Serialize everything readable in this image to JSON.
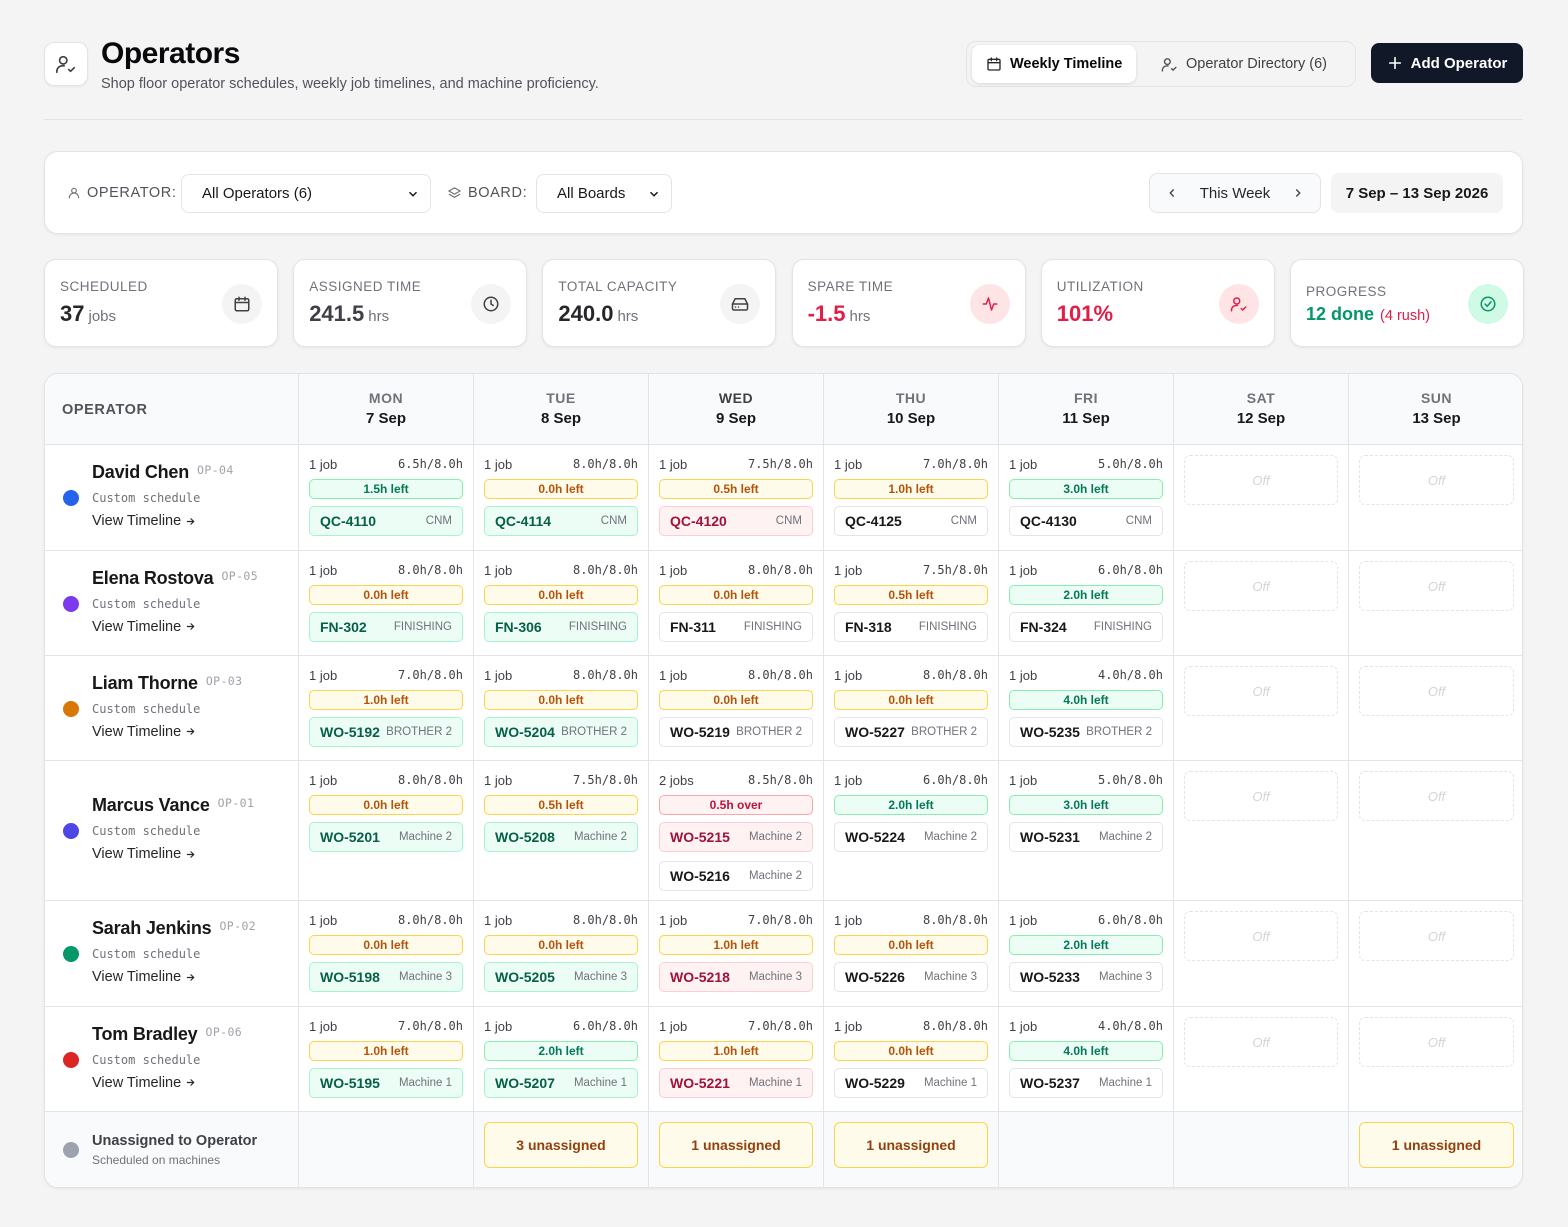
{
  "header": {
    "title": "Operators",
    "subtitle": "Shop floor operator schedules, weekly job timelines, and machine proficiency.",
    "tabs": [
      "Weekly Timeline",
      "Operator Directory (6)"
    ],
    "add_label": "Add Operator"
  },
  "filters": {
    "operator_label": "OPERATOR:",
    "operator_value": "All Operators (6)",
    "board_label": "BOARD:",
    "board_value": "All Boards",
    "week_label": "This Week",
    "range": "7 Sep – 13 Sep 2026"
  },
  "stats": [
    {
      "label": "SCHEDULED",
      "value": "37",
      "unit": "jobs",
      "color": "#27272a",
      "icon": "calendar-icon"
    },
    {
      "label": "ASSIGNED TIME",
      "value": "241.5",
      "unit": "hrs",
      "color": "#3f3f46",
      "icon": "clock-icon"
    },
    {
      "label": "TOTAL CAPACITY",
      "value": "240.0",
      "unit": "hrs",
      "color": "#27272a",
      "icon": "drive-icon"
    },
    {
      "label": "SPARE TIME",
      "value": "-1.5",
      "unit": "hrs",
      "color": "#e11d48",
      "icon": "pulse-icon"
    },
    {
      "label": "UTILIZATION",
      "value": "101%",
      "unit": "",
      "color": "#e11d48",
      "icon": "user-check-icon"
    },
    {
      "label": "PROGRESS",
      "value": "12 done",
      "unit": "(4 rush)",
      "color": "#059669",
      "icon": "check-circle-icon"
    }
  ],
  "grid": {
    "operator_header": "OPERATOR",
    "days": [
      {
        "day": "MON",
        "date": "7 Sep"
      },
      {
        "day": "TUE",
        "date": "8 Sep"
      },
      {
        "day": "WED",
        "date": "9 Sep"
      },
      {
        "day": "THU",
        "date": "10 Sep"
      },
      {
        "day": "FRI",
        "date": "11 Sep"
      },
      {
        "day": "SAT",
        "date": "12 Sep"
      },
      {
        "day": "SUN",
        "date": "13 Sep"
      }
    ],
    "off_label": "Off",
    "view_timeline": "View Timeline",
    "operators": [
      {
        "name": "David Chen",
        "code": "OP-04",
        "schedule": "Custom schedule",
        "color": "#2563eb",
        "cells": [
          {
            "count": "1 job",
            "hours": "6.5h/8.0h",
            "pill": "1.5h left",
            "pill_tone": "green",
            "jobs": [
              {
                "id": "QC-4110",
                "machine": "CNM",
                "tone": "green"
              }
            ]
          },
          {
            "count": "1 job",
            "hours": "8.0h/8.0h",
            "pill": "0.0h left",
            "pill_tone": "amber",
            "jobs": [
              {
                "id": "QC-4114",
                "machine": "CNM",
                "tone": "green"
              }
            ]
          },
          {
            "count": "1 job",
            "hours": "7.5h/8.0h",
            "pill": "0.5h left",
            "pill_tone": "amber",
            "jobs": [
              {
                "id": "QC-4120",
                "machine": "CNM",
                "tone": "red"
              }
            ]
          },
          {
            "count": "1 job",
            "hours": "7.0h/8.0h",
            "pill": "1.0h left",
            "pill_tone": "amber",
            "jobs": [
              {
                "id": "QC-4125",
                "machine": "CNM",
                "tone": "white"
              }
            ]
          },
          {
            "count": "1 job",
            "hours": "5.0h/8.0h",
            "pill": "3.0h left",
            "pill_tone": "green",
            "jobs": [
              {
                "id": "QC-4130",
                "machine": "CNM",
                "tone": "white"
              }
            ]
          }
        ]
      },
      {
        "name": "Elena Rostova",
        "code": "OP-05",
        "schedule": "Custom schedule",
        "color": "#7c3aed",
        "cells": [
          {
            "count": "1 job",
            "hours": "8.0h/8.0h",
            "pill": "0.0h left",
            "pill_tone": "amber",
            "jobs": [
              {
                "id": "FN-302",
                "machine": "FINISHING",
                "tone": "green"
              }
            ]
          },
          {
            "count": "1 job",
            "hours": "8.0h/8.0h",
            "pill": "0.0h left",
            "pill_tone": "amber",
            "jobs": [
              {
                "id": "FN-306",
                "machine": "FINISHING",
                "tone": "green"
              }
            ]
          },
          {
            "count": "1 job",
            "hours": "8.0h/8.0h",
            "pill": "0.0h left",
            "pill_tone": "amber",
            "jobs": [
              {
                "id": "FN-311",
                "machine": "FINISHING",
                "tone": "white"
              }
            ]
          },
          {
            "count": "1 job",
            "hours": "7.5h/8.0h",
            "pill": "0.5h left",
            "pill_tone": "amber",
            "jobs": [
              {
                "id": "FN-318",
                "machine": "FINISHING",
                "tone": "white"
              }
            ]
          },
          {
            "count": "1 job",
            "hours": "6.0h/8.0h",
            "pill": "2.0h left",
            "pill_tone": "green",
            "jobs": [
              {
                "id": "FN-324",
                "machine": "FINISHING",
                "tone": "white"
              }
            ]
          }
        ]
      },
      {
        "name": "Liam Thorne",
        "code": "OP-03",
        "schedule": "Custom schedule",
        "color": "#d97706",
        "cells": [
          {
            "count": "1 job",
            "hours": "7.0h/8.0h",
            "pill": "1.0h left",
            "pill_tone": "amber",
            "jobs": [
              {
                "id": "WO-5192",
                "machine": "BROTHER 2",
                "tone": "green"
              }
            ]
          },
          {
            "count": "1 job",
            "hours": "8.0h/8.0h",
            "pill": "0.0h left",
            "pill_tone": "amber",
            "jobs": [
              {
                "id": "WO-5204",
                "machine": "BROTHER 2",
                "tone": "green"
              }
            ]
          },
          {
            "count": "1 job",
            "hours": "8.0h/8.0h",
            "pill": "0.0h left",
            "pill_tone": "amber",
            "jobs": [
              {
                "id": "WO-5219",
                "machine": "BROTHER 2",
                "tone": "white"
              }
            ]
          },
          {
            "count": "1 job",
            "hours": "8.0h/8.0h",
            "pill": "0.0h left",
            "pill_tone": "amber",
            "jobs": [
              {
                "id": "WO-5227",
                "machine": "BROTHER 2",
                "tone": "white"
              }
            ]
          },
          {
            "count": "1 job",
            "hours": "4.0h/8.0h",
            "pill": "4.0h left",
            "pill_tone": "green",
            "jobs": [
              {
                "id": "WO-5235",
                "machine": "BROTHER 2",
                "tone": "white"
              }
            ]
          }
        ]
      },
      {
        "name": "Marcus Vance",
        "code": "OP-01",
        "schedule": "Custom schedule",
        "color": "#4f46e5",
        "cells": [
          {
            "count": "1 job",
            "hours": "8.0h/8.0h",
            "pill": "0.0h left",
            "pill_tone": "amber",
            "jobs": [
              {
                "id": "WO-5201",
                "machine": "Machine 2",
                "tone": "green"
              }
            ]
          },
          {
            "count": "1 job",
            "hours": "7.5h/8.0h",
            "pill": "0.5h left",
            "pill_tone": "amber",
            "jobs": [
              {
                "id": "WO-5208",
                "machine": "Machine 2",
                "tone": "green"
              }
            ]
          },
          {
            "count": "2 jobs",
            "hours": "8.5h/8.0h",
            "pill": "0.5h over",
            "pill_tone": "red",
            "jobs": [
              {
                "id": "WO-5215",
                "machine": "Machine 2",
                "tone": "red"
              },
              {
                "id": "WO-5216",
                "machine": "Machine 2",
                "tone": "white"
              }
            ]
          },
          {
            "count": "1 job",
            "hours": "6.0h/8.0h",
            "pill": "2.0h left",
            "pill_tone": "green",
            "jobs": [
              {
                "id": "WO-5224",
                "machine": "Machine 2",
                "tone": "white"
              }
            ]
          },
          {
            "count": "1 job",
            "hours": "5.0h/8.0h",
            "pill": "3.0h left",
            "pill_tone": "green",
            "jobs": [
              {
                "id": "WO-5231",
                "machine": "Machine 2",
                "tone": "white"
              }
            ]
          }
        ]
      },
      {
        "name": "Sarah Jenkins",
        "code": "OP-02",
        "schedule": "Custom schedule",
        "color": "#059669",
        "cells": [
          {
            "count": "1 job",
            "hours": "8.0h/8.0h",
            "pill": "0.0h left",
            "pill_tone": "amber",
            "jobs": [
              {
                "id": "WO-5198",
                "machine": "Machine 3",
                "tone": "green"
              }
            ]
          },
          {
            "count": "1 job",
            "hours": "8.0h/8.0h",
            "pill": "0.0h left",
            "pill_tone": "amber",
            "jobs": [
              {
                "id": "WO-5205",
                "machine": "Machine 3",
                "tone": "green"
              }
            ]
          },
          {
            "count": "1 job",
            "hours": "7.0h/8.0h",
            "pill": "1.0h left",
            "pill_tone": "amber",
            "jobs": [
              {
                "id": "WO-5218",
                "machine": "Machine 3",
                "tone": "red"
              }
            ]
          },
          {
            "count": "1 job",
            "hours": "8.0h/8.0h",
            "pill": "0.0h left",
            "pill_tone": "amber",
            "jobs": [
              {
                "id": "WO-5226",
                "machine": "Machine 3",
                "tone": "white"
              }
            ]
          },
          {
            "count": "1 job",
            "hours": "6.0h/8.0h",
            "pill": "2.0h left",
            "pill_tone": "green",
            "jobs": [
              {
                "id": "WO-5233",
                "machine": "Machine 3",
                "tone": "white"
              }
            ]
          }
        ]
      },
      {
        "name": "Tom Bradley",
        "code": "OP-06",
        "schedule": "Custom schedule",
        "color": "#dc2626",
        "cells": [
          {
            "count": "1 job",
            "hours": "7.0h/8.0h",
            "pill": "1.0h left",
            "pill_tone": "amber",
            "jobs": [
              {
                "id": "WO-5195",
                "machine": "Machine 1",
                "tone": "green"
              }
            ]
          },
          {
            "count": "1 job",
            "hours": "6.0h/8.0h",
            "pill": "2.0h left",
            "pill_tone": "green",
            "jobs": [
              {
                "id": "WO-5207",
                "machine": "Machine 1",
                "tone": "green"
              }
            ]
          },
          {
            "count": "1 job",
            "hours": "7.0h/8.0h",
            "pill": "1.0h left",
            "pill_tone": "amber",
            "jobs": [
              {
                "id": "WO-5221",
                "machine": "Machine 1",
                "tone": "red"
              }
            ]
          },
          {
            "count": "1 job",
            "hours": "8.0h/8.0h",
            "pill": "0.0h left",
            "pill_tone": "amber",
            "jobs": [
              {
                "id": "WO-5229",
                "machine": "Machine 1",
                "tone": "white"
              }
            ]
          },
          {
            "count": "1 job",
            "hours": "4.0h/8.0h",
            "pill": "4.0h left",
            "pill_tone": "green",
            "jobs": [
              {
                "id": "WO-5237",
                "machine": "Machine 1",
                "tone": "white"
              }
            ]
          }
        ]
      }
    ],
    "unassigned": {
      "title": "Unassigned to Operator",
      "subtitle": "Scheduled on machines",
      "cells": [
        "",
        "3 unassigned",
        "1 unassigned",
        "1 unassigned",
        "",
        "",
        "1 unassigned"
      ]
    }
  }
}
